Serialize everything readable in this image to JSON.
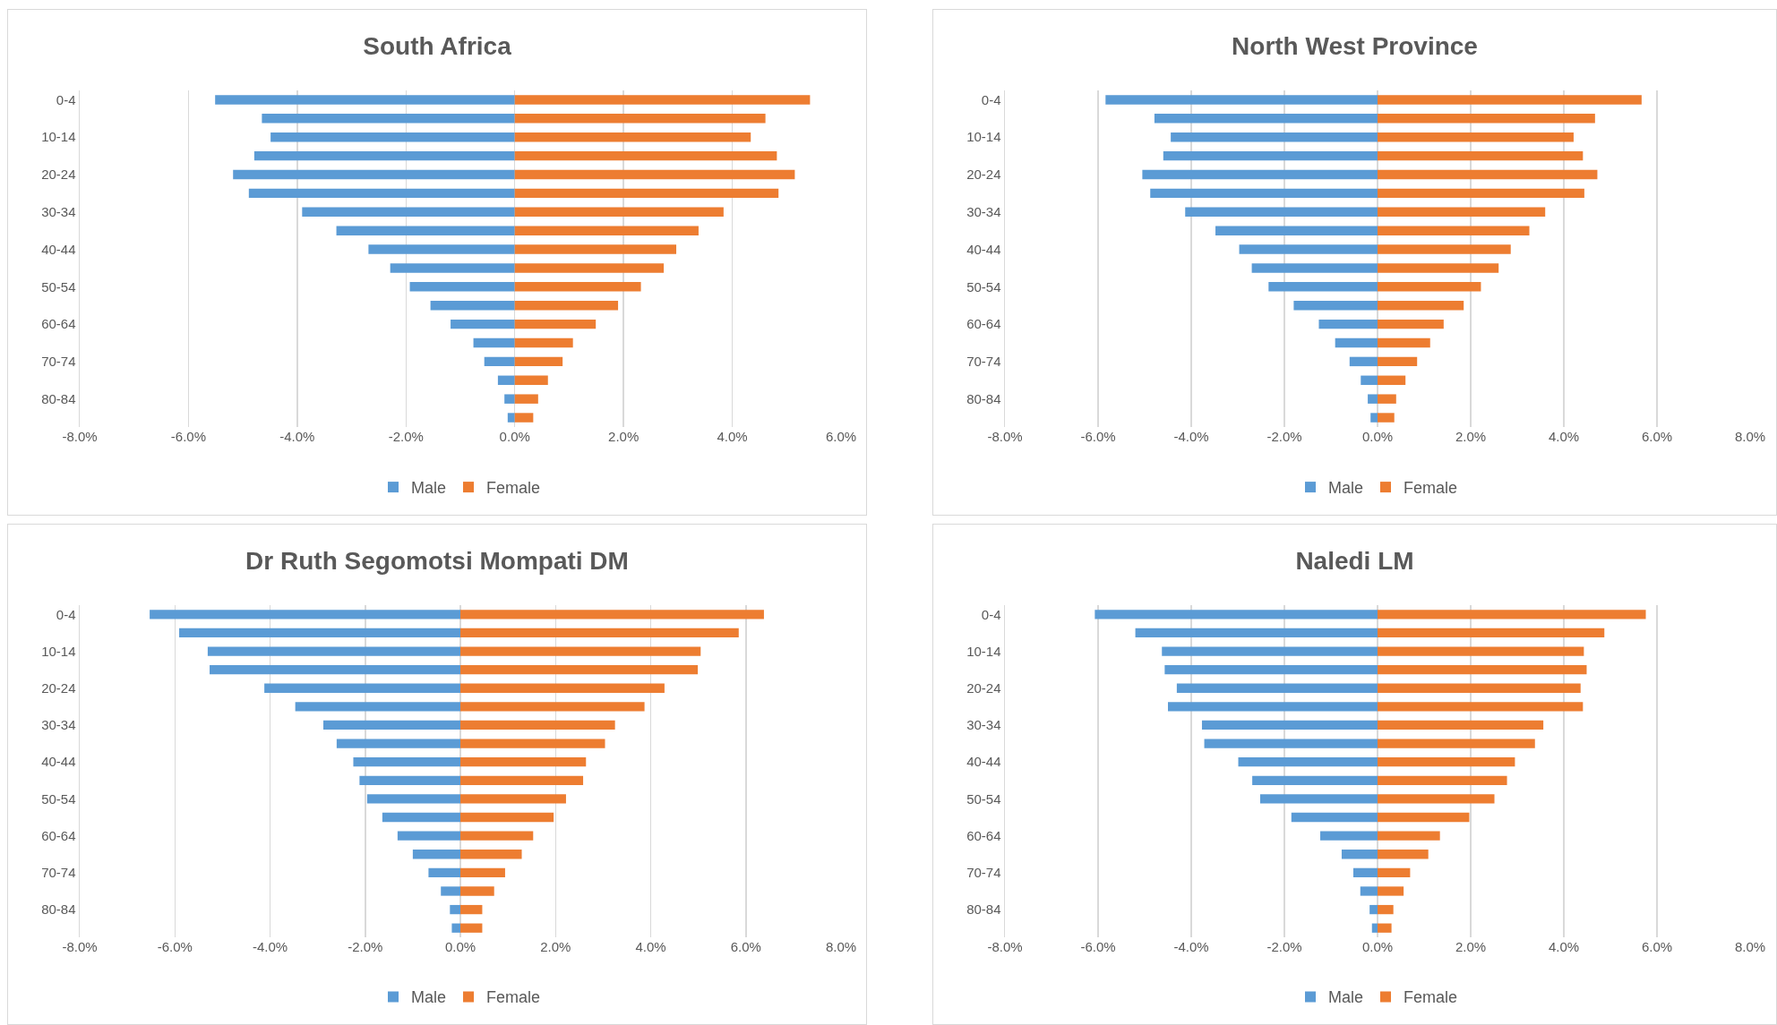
{
  "chart_data": [
    {
      "type": "bar",
      "orientation": "horizontal",
      "stacked": true,
      "title": "South Africa",
      "categories": [
        "0-4",
        null,
        "10-14",
        null,
        "20-24",
        null,
        "30-34",
        null,
        "40-44",
        null,
        "50-54",
        null,
        "60-64",
        null,
        "70-74",
        null,
        "80-84",
        null
      ],
      "series": [
        {
          "name": "Male",
          "color": "#5b9bd5",
          "values": [
            -5.51,
            -4.65,
            -4.49,
            -4.79,
            -5.18,
            -4.89,
            -3.91,
            -3.28,
            -2.69,
            -2.29,
            -1.93,
            -1.55,
            -1.18,
            -0.76,
            -0.56,
            -0.31,
            -0.19,
            -0.13
          ]
        },
        {
          "name": "Female",
          "color": "#ed7d31",
          "values": [
            5.43,
            4.61,
            4.34,
            4.82,
            5.15,
            4.85,
            3.84,
            3.38,
            2.97,
            2.74,
            2.32,
            1.9,
            1.49,
            1.07,
            0.88,
            0.61,
            0.43,
            0.34
          ]
        }
      ],
      "xlim": [
        -8,
        6
      ],
      "xticks": [
        {
          "value": -8,
          "label": "-8.0%"
        },
        {
          "value": -6,
          "label": "-6.0%"
        },
        {
          "value": -4,
          "label": "-4.0%"
        },
        {
          "value": -2,
          "label": "-2.0%"
        },
        {
          "value": 0,
          "label": "0.0%"
        },
        {
          "value": 2,
          "label": "2.0%"
        },
        {
          "value": 4,
          "label": "4.0%"
        },
        {
          "value": 6,
          "label": "6.0%"
        }
      ],
      "grid": "x",
      "legend": "bottom"
    },
    {
      "type": "bar",
      "orientation": "horizontal",
      "stacked": true,
      "title": "North West Province",
      "categories": [
        "0-4",
        null,
        "10-14",
        null,
        "20-24",
        null,
        "30-34",
        null,
        "40-44",
        null,
        "50-54",
        null,
        "60-64",
        null,
        "70-74",
        null,
        "80-84",
        null
      ],
      "series": [
        {
          "name": "Male",
          "color": "#5b9bd5",
          "values": [
            -5.84,
            -4.79,
            -4.44,
            -4.6,
            -5.05,
            -4.88,
            -4.13,
            -3.48,
            -2.97,
            -2.7,
            -2.34,
            -1.8,
            -1.26,
            -0.91,
            -0.6,
            -0.36,
            -0.21,
            -0.15
          ]
        },
        {
          "name": "Female",
          "color": "#ed7d31",
          "values": [
            5.67,
            4.67,
            4.21,
            4.41,
            4.72,
            4.44,
            3.6,
            3.26,
            2.86,
            2.6,
            2.22,
            1.85,
            1.42,
            1.13,
            0.85,
            0.6,
            0.4,
            0.36
          ]
        }
      ],
      "xlim": [
        -8,
        8
      ],
      "xticks": [
        {
          "value": -8,
          "label": "-8.0%"
        },
        {
          "value": -6,
          "label": "-6.0%"
        },
        {
          "value": -4,
          "label": "-4.0%"
        },
        {
          "value": -2,
          "label": "-2.0%"
        },
        {
          "value": 0,
          "label": "0.0%"
        },
        {
          "value": 2,
          "label": "2.0%"
        },
        {
          "value": 4,
          "label": "4.0%"
        },
        {
          "value": 6,
          "label": "6.0%"
        },
        {
          "value": 8,
          "label": "8.0%"
        }
      ],
      "grid": "x",
      "legend": "bottom"
    },
    {
      "type": "bar",
      "orientation": "horizontal",
      "stacked": true,
      "title": "Dr Ruth Segomotsi Mompati DM",
      "categories": [
        "0-4",
        null,
        "10-14",
        null,
        "20-24",
        null,
        "30-34",
        null,
        "40-44",
        null,
        "50-54",
        null,
        "60-64",
        null,
        "70-74",
        null,
        "80-84",
        null
      ],
      "series": [
        {
          "name": "Male",
          "color": "#5b9bd5",
          "values": [
            -6.53,
            -5.91,
            -5.31,
            -5.27,
            -4.12,
            -3.47,
            -2.88,
            -2.6,
            -2.25,
            -2.12,
            -1.96,
            -1.64,
            -1.32,
            -1.0,
            -0.67,
            -0.41,
            -0.22,
            -0.18
          ]
        },
        {
          "name": "Female",
          "color": "#ed7d31",
          "values": [
            6.38,
            5.85,
            5.05,
            4.99,
            4.29,
            3.87,
            3.25,
            3.04,
            2.64,
            2.58,
            2.22,
            1.96,
            1.53,
            1.29,
            0.94,
            0.71,
            0.46,
            0.46
          ]
        }
      ],
      "xlim": [
        -8,
        8
      ],
      "xticks": [
        {
          "value": -8,
          "label": "-8.0%"
        },
        {
          "value": -6,
          "label": "-6.0%"
        },
        {
          "value": -4,
          "label": "-4.0%"
        },
        {
          "value": -2,
          "label": "-2.0%"
        },
        {
          "value": 0,
          "label": "0.0%"
        },
        {
          "value": 2,
          "label": "2.0%"
        },
        {
          "value": 4,
          "label": "4.0%"
        },
        {
          "value": 6,
          "label": "6.0%"
        },
        {
          "value": 8,
          "label": "8.0%"
        }
      ],
      "grid": "x",
      "legend": "bottom"
    },
    {
      "type": "bar",
      "orientation": "horizontal",
      "stacked": true,
      "title": "Naledi LM",
      "categories": [
        "0-4",
        null,
        "10-14",
        null,
        "20-24",
        null,
        "30-34",
        null,
        "40-44",
        null,
        "50-54",
        null,
        "60-64",
        null,
        "70-74",
        null,
        "80-84",
        null
      ],
      "series": [
        {
          "name": "Male",
          "color": "#5b9bd5",
          "values": [
            -6.07,
            -5.2,
            -4.63,
            -4.57,
            -4.31,
            -4.5,
            -3.77,
            -3.72,
            -2.99,
            -2.69,
            -2.52,
            -1.85,
            -1.23,
            -0.77,
            -0.52,
            -0.37,
            -0.17,
            -0.12
          ]
        },
        {
          "name": "Female",
          "color": "#ed7d31",
          "values": [
            5.76,
            4.87,
            4.43,
            4.49,
            4.36,
            4.41,
            3.56,
            3.38,
            2.95,
            2.78,
            2.51,
            1.97,
            1.34,
            1.09,
            0.7,
            0.56,
            0.34,
            0.3
          ]
        }
      ],
      "xlim": [
        -8,
        8
      ],
      "xticks": [
        {
          "value": -8,
          "label": "-8.0%"
        },
        {
          "value": -6,
          "label": "-6.0%"
        },
        {
          "value": -4,
          "label": "-4.0%"
        },
        {
          "value": -2,
          "label": "-2.0%"
        },
        {
          "value": 0,
          "label": "0.0%"
        },
        {
          "value": 2,
          "label": "2.0%"
        },
        {
          "value": 4,
          "label": "4.0%"
        },
        {
          "value": 6,
          "label": "6.0%"
        },
        {
          "value": 8,
          "label": "8.0%"
        }
      ],
      "grid": "x",
      "legend": "bottom"
    }
  ]
}
